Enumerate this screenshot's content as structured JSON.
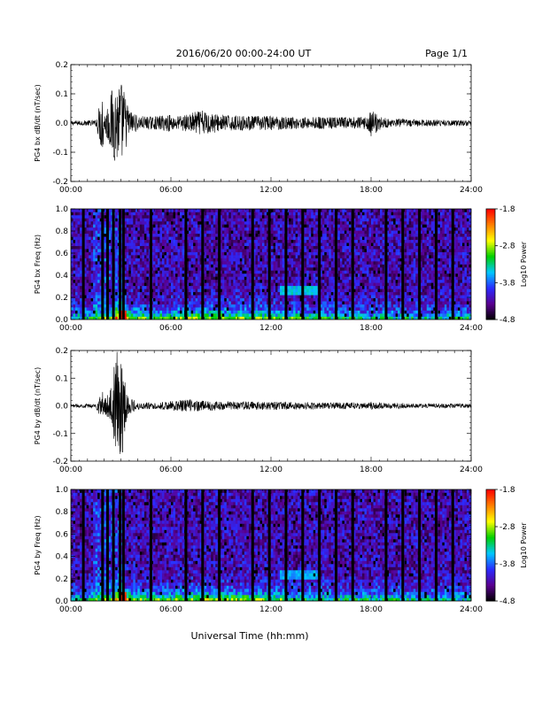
{
  "header": {
    "title": "2016/06/20  00:00-24:00 UT",
    "page": "Page 1/1"
  },
  "xaxis": {
    "title": "Universal Time (hh:mm)",
    "range_hours": [
      0,
      24
    ],
    "ticks": [
      0,
      6,
      12,
      18,
      24
    ],
    "tick_labels": [
      "00:00",
      "06:00",
      "12:00",
      "18:00",
      "24:00"
    ]
  },
  "colormap": {
    "stops": [
      "#000000",
      "#5a0090",
      "#2b2bff",
      "#00c8ff",
      "#00d000",
      "#ffff00",
      "#ff8000",
      "#ff0000"
    ],
    "background": "#3a0a66"
  },
  "chart_data": [
    {
      "id": "bx-waveform",
      "type": "line",
      "ylabel": "PG4 bx dB/dt (nT/sec)",
      "ylim": [
        -0.2,
        0.2
      ],
      "yticks": [
        -0.2,
        -0.1,
        0.0,
        0.1,
        0.2
      ],
      "ytick_labels": [
        "-0.2",
        "-0.1",
        "0.0",
        "0.1",
        "0.2"
      ],
      "x_hours": [
        0,
        1.5,
        1.9,
        2.0,
        2.3,
        2.5,
        2.7,
        2.9,
        3.1,
        3.3,
        3.5,
        4.0,
        5.0,
        5.8,
        6.4,
        7.0,
        7.5,
        8.0,
        8.5,
        9.0,
        10.0,
        11.0,
        12.0,
        13.0,
        14.0,
        15.0,
        16.0,
        17.0,
        17.7,
        18.0,
        18.5,
        19.0,
        20.0,
        21.0,
        22.0,
        23.0,
        24.0
      ],
      "envelope": [
        0.008,
        0.01,
        0.11,
        0.04,
        0.08,
        0.13,
        0.14,
        0.15,
        0.14,
        0.09,
        0.05,
        0.025,
        0.022,
        0.03,
        0.025,
        0.03,
        0.04,
        0.045,
        0.035,
        0.03,
        0.025,
        0.025,
        0.025,
        0.022,
        0.02,
        0.022,
        0.02,
        0.02,
        0.022,
        0.05,
        0.025,
        0.015,
        0.015,
        0.012,
        0.012,
        0.01,
        0.01
      ]
    },
    {
      "id": "bx-spectrogram",
      "type": "heatmap",
      "ylabel": "PG4 bx Freq (Hz)",
      "ylim": [
        0.0,
        1.0
      ],
      "yticks": [
        0.0,
        0.2,
        0.4,
        0.6,
        0.8,
        1.0
      ],
      "ytick_labels": [
        "0.0",
        "0.2",
        "0.4",
        "0.6",
        "0.8",
        "1.0"
      ],
      "color_range": [
        -4.8,
        -1.8
      ],
      "colorbar_ticks": [
        -4.8,
        -3.8,
        -2.8,
        -1.8
      ],
      "colorbar_labels": [
        "-4.8",
        "-3.8",
        "-2.8",
        "-1.8"
      ],
      "colorbar_title": "Log10 Power",
      "gap_hours": [
        0.75,
        1.9,
        2.2,
        2.55,
        2.95,
        3.15,
        4.8,
        6.9,
        7.9,
        8.9,
        10.9,
        11.9,
        12.9,
        13.9,
        14.9,
        15.9,
        16.9,
        18.9,
        19.9,
        20.9,
        21.9,
        22.9
      ],
      "features": [
        {
          "t0": 12.5,
          "t1": 14.8,
          "f0": 0.22,
          "f1": 0.3,
          "level": -3.5
        },
        {
          "t0": 2.9,
          "t1": 3.3,
          "f0": 0.0,
          "f1": 0.08,
          "level": -1.9
        }
      ]
    },
    {
      "id": "by-waveform",
      "type": "line",
      "ylabel": "PG4 by dB/dt (nT/sec)",
      "ylim": [
        -0.2,
        0.2
      ],
      "yticks": [
        -0.2,
        -0.1,
        0.0,
        0.1,
        0.2
      ],
      "ytick_labels": [
        "-0.2",
        "-0.1",
        "0.0",
        "0.1",
        "0.2"
      ],
      "x_hours": [
        0,
        1.5,
        1.9,
        2.0,
        2.3,
        2.5,
        2.7,
        2.9,
        3.1,
        3.3,
        3.5,
        4.0,
        5.0,
        5.8,
        6.4,
        7.0,
        7.5,
        8.0,
        8.5,
        9.0,
        10.0,
        11.0,
        12.0,
        13.0,
        14.0,
        15.0,
        16.0,
        17.0,
        17.7,
        18.0,
        18.5,
        19.0,
        20.0,
        21.0,
        22.0,
        23.0,
        24.0
      ],
      "envelope": [
        0.005,
        0.008,
        0.06,
        0.03,
        0.05,
        0.09,
        0.2,
        0.2,
        0.18,
        0.08,
        0.03,
        0.015,
        0.012,
        0.015,
        0.02,
        0.025,
        0.02,
        0.02,
        0.018,
        0.015,
        0.015,
        0.015,
        0.015,
        0.015,
        0.012,
        0.012,
        0.012,
        0.012,
        0.013,
        0.015,
        0.012,
        0.01,
        0.01,
        0.008,
        0.008,
        0.008,
        0.008
      ]
    },
    {
      "id": "by-spectrogram",
      "type": "heatmap",
      "ylabel": "PG4 by Freq (Hz)",
      "ylim": [
        0.0,
        1.0
      ],
      "yticks": [
        0.0,
        0.2,
        0.4,
        0.6,
        0.8,
        1.0
      ],
      "ytick_labels": [
        "0.0",
        "0.2",
        "0.4",
        "0.6",
        "0.8",
        "1.0"
      ],
      "color_range": [
        -4.8,
        -1.8
      ],
      "colorbar_ticks": [
        -4.8,
        -3.8,
        -2.8,
        -1.8
      ],
      "colorbar_labels": [
        "-4.8",
        "-3.8",
        "-2.8",
        "-1.8"
      ],
      "colorbar_title": "Log10 Power",
      "gap_hours": [
        0.75,
        1.9,
        2.2,
        2.55,
        2.95,
        3.15,
        4.8,
        6.9,
        7.9,
        8.9,
        10.9,
        11.9,
        12.9,
        13.9,
        14.9,
        15.9,
        16.9,
        18.9,
        19.9,
        20.9,
        21.9,
        22.9
      ],
      "features": [
        {
          "t0": 12.5,
          "t1": 14.8,
          "f0": 0.2,
          "f1": 0.27,
          "level": -3.6
        },
        {
          "t0": 2.9,
          "t1": 3.3,
          "f0": 0.0,
          "f1": 0.08,
          "level": -1.9
        }
      ]
    }
  ]
}
